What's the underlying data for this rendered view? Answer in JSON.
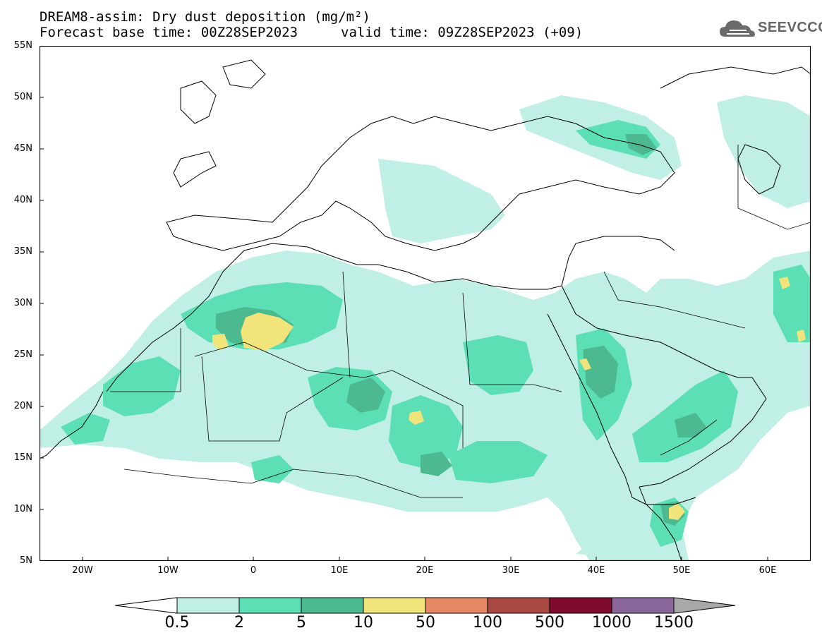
{
  "header": {
    "title": "DREAM8-assim: Dry dust deposition (mg/m²)",
    "base_time": "Forecast base time: 00Z28SEP2023",
    "valid_time": "valid time: 09Z28SEP2023 (+09)",
    "logo_text": "SEEVCCC",
    "logo_icon": "cloud-icon"
  },
  "axes": {
    "lat_labels": [
      "55N",
      "50N",
      "45N",
      "40N",
      "35N",
      "30N",
      "25N",
      "20N",
      "15N",
      "10N",
      "5N"
    ],
    "lon_labels": [
      "20W",
      "10W",
      "0",
      "10E",
      "20E",
      "30E",
      "40E",
      "50E",
      "60E"
    ],
    "lat_range": [
      5,
      55
    ],
    "lon_range": [
      -25,
      65
    ]
  },
  "colorbar": {
    "levels": [
      "0.5",
      "2",
      "5",
      "10",
      "50",
      "100",
      "500",
      "1000",
      "1500"
    ],
    "colors": [
      "#c0efe6",
      "#5ddfb6",
      "#4cb990",
      "#f1e47a",
      "#e48865",
      "#a74941",
      "#7f0c2e",
      "#89679c"
    ],
    "end_colors": [
      "#ffffff",
      "#a8a8a8"
    ]
  },
  "map_colors": {
    "land": "#ffffff",
    "coast": "#000000",
    "level1": "#c0efe6",
    "level2": "#5ddfb6",
    "level3": "#4cb990",
    "level4": "#f1e47a"
  }
}
